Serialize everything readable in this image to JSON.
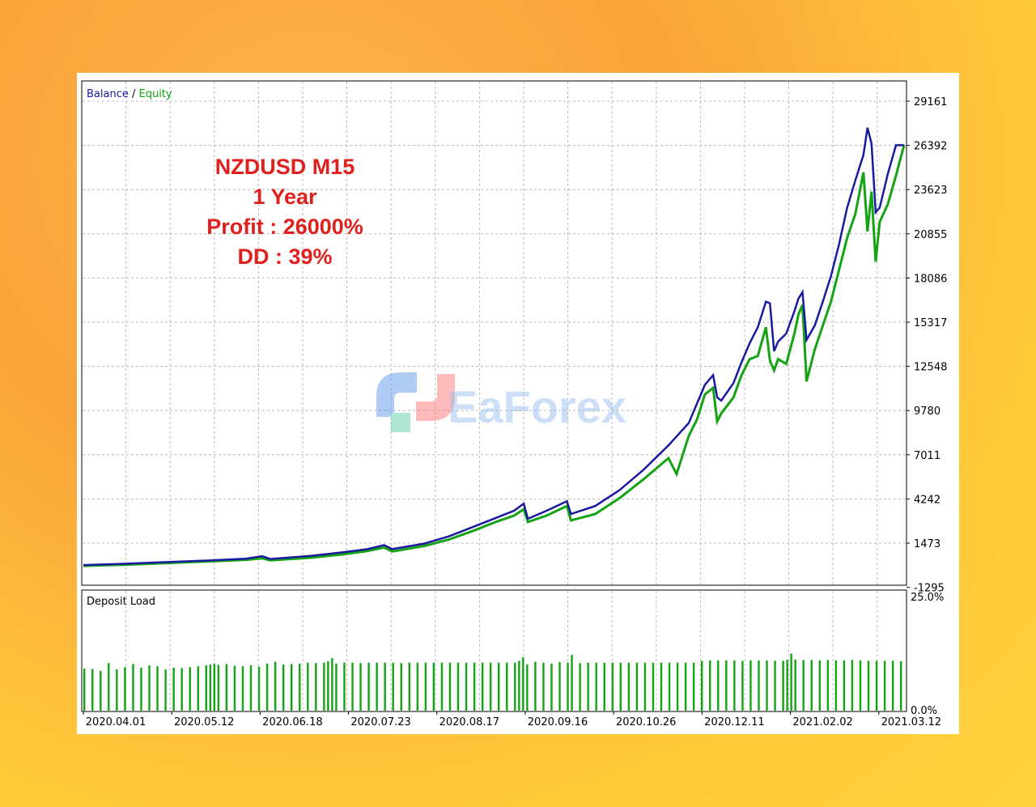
{
  "chart_data": [
    {
      "type": "line",
      "title": "",
      "legend": [
        {
          "label": "Balance",
          "color": "#1a1aa0"
        },
        {
          "label": "Equity",
          "color": "#13a313"
        }
      ],
      "legend_separator": " / ",
      "annotation": [
        "NZDUSD M15",
        "1 Year",
        "Profit : 26000%",
        "DD : 39%"
      ],
      "y_ticks": [
        "29161",
        "26392",
        "23623",
        "20855",
        "18086",
        "15317",
        "12548",
        "9780",
        "7011",
        "4242",
        "1473",
        "-1295"
      ],
      "ylim": [
        -1295,
        29161
      ],
      "x_ticks": [
        "2020.04.01",
        "2020.05.12",
        "2020.06.18",
        "2020.07.23",
        "2020.08.17",
        "2020.09.16",
        "2020.10.26",
        "2020.12.11",
        "2021.02.02",
        "2021.03.12"
      ],
      "grid": true,
      "series": [
        {
          "name": "Balance",
          "color": "#1a1aa0",
          "points": [
            [
              0,
              100
            ],
            [
              0.05,
              180
            ],
            [
              0.1,
              280
            ],
            [
              0.15,
              380
            ],
            [
              0.2,
              500
            ],
            [
              0.22,
              650
            ],
            [
              0.23,
              480
            ],
            [
              0.28,
              680
            ],
            [
              0.32,
              900
            ],
            [
              0.35,
              1100
            ],
            [
              0.37,
              1350
            ],
            [
              0.38,
              1100
            ],
            [
              0.42,
              1450
            ],
            [
              0.45,
              1900
            ],
            [
              0.48,
              2500
            ],
            [
              0.51,
              3100
            ],
            [
              0.53,
              3500
            ],
            [
              0.542,
              3950
            ],
            [
              0.547,
              3000
            ],
            [
              0.57,
              3500
            ],
            [
              0.595,
              4100
            ],
            [
              0.6,
              3300
            ],
            [
              0.63,
              3800
            ],
            [
              0.66,
              4800
            ],
            [
              0.69,
              6100
            ],
            [
              0.72,
              7600
            ],
            [
              0.745,
              9000
            ],
            [
              0.755,
              10200
            ],
            [
              0.765,
              11400
            ],
            [
              0.775,
              12000
            ],
            [
              0.78,
              10600
            ],
            [
              0.785,
              10400
            ],
            [
              0.8,
              11500
            ],
            [
              0.81,
              12800
            ],
            [
              0.82,
              14000
            ],
            [
              0.83,
              15000
            ],
            [
              0.84,
              16600
            ],
            [
              0.845,
              16500
            ],
            [
              0.85,
              13500
            ],
            [
              0.855,
              14100
            ],
            [
              0.865,
              14600
            ],
            [
              0.875,
              16000
            ],
            [
              0.88,
              16800
            ],
            [
              0.885,
              17200
            ],
            [
              0.89,
              14200
            ],
            [
              0.9,
              15100
            ],
            [
              0.91,
              16600
            ],
            [
              0.92,
              18200
            ],
            [
              0.93,
              20200
            ],
            [
              0.94,
              22500
            ],
            [
              0.95,
              24200
            ],
            [
              0.96,
              25800
            ],
            [
              0.965,
              27500
            ],
            [
              0.97,
              26500
            ],
            [
              0.975,
              22200
            ],
            [
              0.98,
              22500
            ],
            [
              0.99,
              24600
            ],
            [
              1.0,
              26400
            ],
            [
              1.01,
              26400
            ]
          ]
        },
        {
          "name": "Equity",
          "color": "#13a313",
          "points": [
            [
              0,
              50
            ],
            [
              0.05,
              120
            ],
            [
              0.1,
              220
            ],
            [
              0.15,
              320
            ],
            [
              0.2,
              430
            ],
            [
              0.22,
              520
            ],
            [
              0.23,
              400
            ],
            [
              0.28,
              560
            ],
            [
              0.32,
              780
            ],
            [
              0.35,
              980
            ],
            [
              0.37,
              1200
            ],
            [
              0.38,
              950
            ],
            [
              0.42,
              1300
            ],
            [
              0.45,
              1700
            ],
            [
              0.48,
              2250
            ],
            [
              0.51,
              2850
            ],
            [
              0.53,
              3200
            ],
            [
              0.542,
              3600
            ],
            [
              0.547,
              2800
            ],
            [
              0.57,
              3200
            ],
            [
              0.595,
              3800
            ],
            [
              0.6,
              2900
            ],
            [
              0.63,
              3300
            ],
            [
              0.66,
              4300
            ],
            [
              0.69,
              5500
            ],
            [
              0.72,
              6800
            ],
            [
              0.73,
              5800
            ],
            [
              0.745,
              8200
            ],
            [
              0.755,
              9200
            ],
            [
              0.765,
              10800
            ],
            [
              0.775,
              11200
            ],
            [
              0.78,
              9100
            ],
            [
              0.785,
              9600
            ],
            [
              0.8,
              10600
            ],
            [
              0.81,
              12000
            ],
            [
              0.82,
              13000
            ],
            [
              0.83,
              13200
            ],
            [
              0.84,
              15000
            ],
            [
              0.845,
              12900
            ],
            [
              0.85,
              12300
            ],
            [
              0.855,
              13000
            ],
            [
              0.865,
              12700
            ],
            [
              0.875,
              14600
            ],
            [
              0.88,
              15800
            ],
            [
              0.885,
              16400
            ],
            [
              0.89,
              11600
            ],
            [
              0.9,
              13600
            ],
            [
              0.91,
              15100
            ],
            [
              0.92,
              16600
            ],
            [
              0.93,
              18600
            ],
            [
              0.94,
              20600
            ],
            [
              0.95,
              22100
            ],
            [
              0.96,
              24700
            ],
            [
              0.965,
              21000
            ],
            [
              0.97,
              23500
            ],
            [
              0.975,
              19100
            ],
            [
              0.98,
              21600
            ],
            [
              0.99,
              22700
            ],
            [
              1.0,
              24500
            ],
            [
              1.01,
              26400
            ]
          ]
        }
      ]
    },
    {
      "type": "bar",
      "title": "Deposit Load",
      "y_ticks": [
        "25.0%",
        "0.0%"
      ],
      "ylim": [
        0,
        25
      ],
      "color": "#13a313",
      "bars": [
        {
          "x": 0.0,
          "v": 9.3
        },
        {
          "x": 0.01,
          "v": 9.2
        },
        {
          "x": 0.02,
          "v": 8.8
        },
        {
          "x": 0.03,
          "v": 10.5
        },
        {
          "x": 0.04,
          "v": 9.1
        },
        {
          "x": 0.05,
          "v": 9.6
        },
        {
          "x": 0.06,
          "v": 10.3
        },
        {
          "x": 0.07,
          "v": 9.5
        },
        {
          "x": 0.08,
          "v": 10.0
        },
        {
          "x": 0.09,
          "v": 9.8
        },
        {
          "x": 0.1,
          "v": 9.1
        },
        {
          "x": 0.11,
          "v": 9.5
        },
        {
          "x": 0.12,
          "v": 9.4
        },
        {
          "x": 0.13,
          "v": 9.6
        },
        {
          "x": 0.14,
          "v": 9.8
        },
        {
          "x": 0.15,
          "v": 10.0
        },
        {
          "x": 0.155,
          "v": 10.2
        },
        {
          "x": 0.16,
          "v": 10.4
        },
        {
          "x": 0.165,
          "v": 10.1
        },
        {
          "x": 0.175,
          "v": 10.3
        },
        {
          "x": 0.185,
          "v": 9.9
        },
        {
          "x": 0.195,
          "v": 9.8
        },
        {
          "x": 0.205,
          "v": 10.0
        },
        {
          "x": 0.215,
          "v": 9.7
        },
        {
          "x": 0.225,
          "v": 10.4
        },
        {
          "x": 0.235,
          "v": 10.8
        },
        {
          "x": 0.245,
          "v": 10.2
        },
        {
          "x": 0.255,
          "v": 10.3
        },
        {
          "x": 0.265,
          "v": 10.4
        },
        {
          "x": 0.275,
          "v": 10.6
        },
        {
          "x": 0.285,
          "v": 10.5
        },
        {
          "x": 0.295,
          "v": 10.6
        },
        {
          "x": 0.3,
          "v": 10.9
        },
        {
          "x": 0.305,
          "v": 11.6
        },
        {
          "x": 0.31,
          "v": 10.4
        },
        {
          "x": 0.32,
          "v": 10.6
        },
        {
          "x": 0.33,
          "v": 10.6
        },
        {
          "x": 0.34,
          "v": 10.5
        },
        {
          "x": 0.35,
          "v": 10.6
        },
        {
          "x": 0.36,
          "v": 10.6
        },
        {
          "x": 0.37,
          "v": 10.6
        },
        {
          "x": 0.38,
          "v": 10.6
        },
        {
          "x": 0.39,
          "v": 10.5
        },
        {
          "x": 0.4,
          "v": 10.6
        },
        {
          "x": 0.41,
          "v": 10.6
        },
        {
          "x": 0.42,
          "v": 10.6
        },
        {
          "x": 0.43,
          "v": 10.6
        },
        {
          "x": 0.44,
          "v": 10.6
        },
        {
          "x": 0.45,
          "v": 10.6
        },
        {
          "x": 0.46,
          "v": 10.6
        },
        {
          "x": 0.47,
          "v": 10.6
        },
        {
          "x": 0.48,
          "v": 10.6
        },
        {
          "x": 0.49,
          "v": 10.6
        },
        {
          "x": 0.5,
          "v": 10.6
        },
        {
          "x": 0.51,
          "v": 10.6
        },
        {
          "x": 0.52,
          "v": 10.6
        },
        {
          "x": 0.53,
          "v": 10.6
        },
        {
          "x": 0.535,
          "v": 11.0
        },
        {
          "x": 0.54,
          "v": 11.8
        },
        {
          "x": 0.545,
          "v": 10.2
        },
        {
          "x": 0.555,
          "v": 10.8
        },
        {
          "x": 0.565,
          "v": 10.6
        },
        {
          "x": 0.575,
          "v": 10.4
        },
        {
          "x": 0.585,
          "v": 10.7
        },
        {
          "x": 0.595,
          "v": 10.6
        },
        {
          "x": 0.6,
          "v": 12.3
        },
        {
          "x": 0.61,
          "v": 10.5
        },
        {
          "x": 0.62,
          "v": 10.6
        },
        {
          "x": 0.63,
          "v": 10.6
        },
        {
          "x": 0.64,
          "v": 10.6
        },
        {
          "x": 0.65,
          "v": 10.6
        },
        {
          "x": 0.66,
          "v": 10.6
        },
        {
          "x": 0.67,
          "v": 10.6
        },
        {
          "x": 0.68,
          "v": 10.6
        },
        {
          "x": 0.69,
          "v": 10.6
        },
        {
          "x": 0.7,
          "v": 10.6
        },
        {
          "x": 0.71,
          "v": 10.6
        },
        {
          "x": 0.72,
          "v": 10.6
        },
        {
          "x": 0.73,
          "v": 10.6
        },
        {
          "x": 0.74,
          "v": 10.6
        },
        {
          "x": 0.75,
          "v": 10.6
        },
        {
          "x": 0.76,
          "v": 11.0
        },
        {
          "x": 0.77,
          "v": 11.1
        },
        {
          "x": 0.78,
          "v": 11.1
        },
        {
          "x": 0.79,
          "v": 11.1
        },
        {
          "x": 0.8,
          "v": 11.1
        },
        {
          "x": 0.81,
          "v": 11.0
        },
        {
          "x": 0.82,
          "v": 11.1
        },
        {
          "x": 0.83,
          "v": 11.1
        },
        {
          "x": 0.84,
          "v": 11.1
        },
        {
          "x": 0.85,
          "v": 11.0
        },
        {
          "x": 0.86,
          "v": 11.0
        },
        {
          "x": 0.865,
          "v": 11.2
        },
        {
          "x": 0.87,
          "v": 12.6
        },
        {
          "x": 0.875,
          "v": 11.3
        },
        {
          "x": 0.885,
          "v": 11.2
        },
        {
          "x": 0.895,
          "v": 11.2
        },
        {
          "x": 0.905,
          "v": 11.1
        },
        {
          "x": 0.915,
          "v": 11.2
        },
        {
          "x": 0.925,
          "v": 11.1
        },
        {
          "x": 0.935,
          "v": 11.1
        },
        {
          "x": 0.945,
          "v": 11.2
        },
        {
          "x": 0.955,
          "v": 11.1
        },
        {
          "x": 0.965,
          "v": 11.0
        },
        {
          "x": 0.975,
          "v": 11.0
        },
        {
          "x": 0.985,
          "v": 11.0
        },
        {
          "x": 0.995,
          "v": 11.0
        },
        {
          "x": 1.005,
          "v": 10.9
        }
      ]
    }
  ],
  "watermark": "EaForex"
}
